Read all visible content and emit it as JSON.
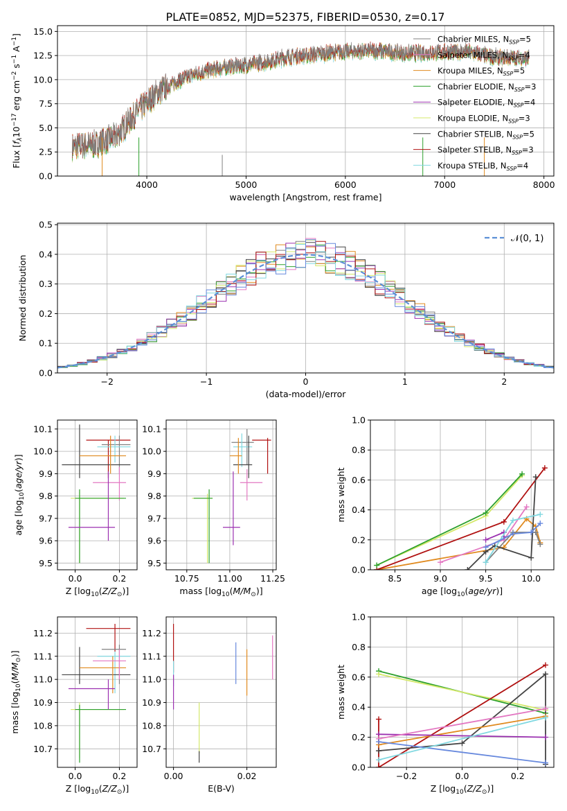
{
  "title": "PLATE=0852, MJD=52375, FIBERID=0530, z=0.17",
  "colors": [
    "#808080",
    "#e377c2",
    "#ff7f0e",
    "#2ca02c",
    "#9467bd",
    "#dbdb8d",
    "#555555",
    "#b22222",
    "#7fd6e0"
  ],
  "models": [
    {
      "label": "Chabrier MILES, N",
      "n": "5",
      "color": "#808080"
    },
    {
      "label": "Salpeter MILES, N",
      "n": "4",
      "color": "#e377c2"
    },
    {
      "label": "Kroupa MILES, N",
      "n": "5",
      "color": "#e08a1e"
    },
    {
      "label": "Chabrier ELODIE, N",
      "n": "3",
      "color": "#2ca02c"
    },
    {
      "label": "Salpeter ELODIE, N",
      "n": "4",
      "color": "#9b30b0"
    },
    {
      "label": "Kroupa ELODIE, N",
      "n": "3",
      "color": "#d4e86a"
    },
    {
      "label": "Chabrier STELIB, N",
      "n": "5",
      "color": "#444444"
    },
    {
      "label": "Salpeter STELIB, N",
      "n": "3",
      "color": "#b01010"
    },
    {
      "label": "Kroupa STELIB, N",
      "n": "4",
      "color": "#80d8e0"
    }
  ],
  "chart_data": [
    {
      "id": "spectrum",
      "type": "line",
      "xlabel": "wavelength [Angstrom, rest frame]",
      "ylabel": "Flux [f_λ10^{-17} erg cm^{-2} s^{-1} A^{-1}]",
      "xlim": [
        3100,
        8100
      ],
      "ylim": [
        0,
        15.6
      ],
      "xticks": [
        4000,
        5000,
        6000,
        7000,
        8000
      ],
      "yticks": [
        "0.0",
        "2.5",
        "5.0",
        "7.5",
        "10.0",
        "12.5",
        "15.0"
      ],
      "ytick_values": [
        0,
        2.5,
        5,
        7.5,
        10,
        12.5,
        15
      ],
      "continuum_x": [
        3250,
        3500,
        3700,
        3900,
        4100,
        4300,
        4500,
        4800,
        5100,
        5400,
        5700,
        6000,
        6300,
        6600,
        6900,
        7200,
        7500,
        7850
      ],
      "continuum_y": [
        3.0,
        3.3,
        4.2,
        6.6,
        8.6,
        9.8,
        10.6,
        11.3,
        11.6,
        12.3,
        12.6,
        12.9,
        13.0,
        12.7,
        12.8,
        12.9,
        12.3,
        12.2
      ],
      "grid": true
    },
    {
      "id": "residuals",
      "type": "step",
      "xlabel": "(data-model)/error",
      "ylabel": "Normed distribution",
      "xlim": [
        -2.5,
        2.5
      ],
      "ylim": [
        0,
        0.505
      ],
      "xticks": [
        "−2",
        "−1",
        "0",
        "1",
        "2"
      ],
      "xtick_values": [
        -2,
        -1,
        0,
        1,
        2
      ],
      "yticks": [
        "0.0",
        "0.1",
        "0.2",
        "0.3",
        "0.4",
        "0.5"
      ],
      "ytick_values": [
        0,
        0.1,
        0.2,
        0.3,
        0.4,
        0.5
      ],
      "legend": "𝒩(0, 1)",
      "legend_position": "top-right",
      "bin_width": 0.1,
      "grid": true
    },
    {
      "id": "age_vs_Z",
      "type": "errorbar",
      "xlabel": "Z [log10(Z/Z⊙)]",
      "ylabel": "age  [log10(age/yr)]",
      "xlim": [
        -0.08,
        0.28
      ],
      "ylim": [
        9.47,
        10.14
      ],
      "xticks": [
        "0.0",
        "0.2"
      ],
      "xtick_values": [
        0,
        0.2
      ],
      "yticks": [
        "9.5",
        "9.6",
        "9.7",
        "9.8",
        "9.9",
        "10.0",
        "10.1"
      ],
      "ytick_values": [
        9.5,
        9.6,
        9.7,
        9.8,
        9.9,
        10.0,
        10.1
      ],
      "points": [
        {
          "c": 7,
          "x": 0.15,
          "xe": [
            0.05,
            0.25
          ],
          "y": 10.05,
          "ye": [
            9.88,
            10.05
          ]
        },
        {
          "c": 0,
          "x": 0.2,
          "xe": [
            0.12,
            0.25
          ],
          "y": 10.03,
          "ye": [
            9.9,
            10.07
          ]
        },
        {
          "c": 8,
          "x": 0.18,
          "xe": [
            0.1,
            0.25
          ],
          "y": 10.02,
          "ye": [
            9.95,
            10.07
          ]
        },
        {
          "c": 6,
          "x": 0.02,
          "xe": [
            -0.06,
            0.25
          ],
          "y": 9.94,
          "ye": [
            9.88,
            10.12
          ]
        },
        {
          "c": 2,
          "x": 0.16,
          "xe": [
            0.02,
            0.23
          ],
          "y": 9.98,
          "ye": [
            9.9,
            10.07
          ]
        },
        {
          "c": 1,
          "x": 0.2,
          "xe": [
            0.08,
            0.23
          ],
          "y": 9.86,
          "ye": [
            9.78,
            9.93
          ]
        },
        {
          "c": 5,
          "x": 0.02,
          "xe": [
            -0.02,
            0.22
          ],
          "y": 9.79,
          "ye": [
            9.5,
            9.82
          ]
        },
        {
          "c": 3,
          "x": 0.02,
          "xe": [
            0.0,
            0.23
          ],
          "y": 9.79,
          "ye": [
            9.5,
            9.83
          ]
        },
        {
          "c": 4,
          "x": 0.15,
          "xe": [
            -0.03,
            0.18
          ],
          "y": 9.66,
          "ye": [
            9.6,
            9.91
          ]
        }
      ],
      "grid": true
    },
    {
      "id": "age_vs_mass",
      "type": "errorbar",
      "xlabel": "mass [log10(M/M⊙)]",
      "ylabel": "",
      "xlim": [
        10.63,
        11.27
      ],
      "ylim": [
        9.47,
        10.14
      ],
      "xticks": [
        "10.75",
        "11.00",
        "11.25"
      ],
      "xtick_values": [
        10.75,
        11.0,
        11.25
      ],
      "yticks": [
        "9.5",
        "9.6",
        "9.7",
        "9.8",
        "9.9",
        "10.0",
        "10.1"
      ],
      "ytick_values": [
        9.5,
        9.6,
        9.7,
        9.8,
        9.9,
        10.0,
        10.1
      ],
      "points": [
        {
          "c": 7,
          "x": 11.22,
          "xe": [
            11.13,
            11.24
          ],
          "y": 10.05,
          "ye": [
            9.9,
            10.06
          ]
        },
        {
          "c": 0,
          "x": 11.1,
          "xe": [
            11.01,
            11.14
          ],
          "y": 10.04,
          "ye": [
            9.94,
            10.1
          ]
        },
        {
          "c": 8,
          "x": 11.07,
          "xe": [
            11.02,
            11.13
          ],
          "y": 10.02,
          "ye": [
            9.93,
            10.08
          ]
        },
        {
          "c": 6,
          "x": 11.11,
          "xe": [
            11.02,
            11.13
          ],
          "y": 9.94,
          "ye": [
            9.88,
            10.07
          ]
        },
        {
          "c": 2,
          "x": 11.05,
          "xe": [
            11.0,
            11.07
          ],
          "y": 9.98,
          "ye": [
            9.9,
            10.06
          ]
        },
        {
          "c": 1,
          "x": 11.1,
          "xe": [
            11.06,
            11.19
          ],
          "y": 9.86,
          "ye": [
            9.78,
            9.92
          ]
        },
        {
          "c": 5,
          "x": 10.87,
          "xe": [
            10.78,
            10.9
          ],
          "y": 9.79,
          "ye": [
            9.5,
            9.81
          ]
        },
        {
          "c": 3,
          "x": 10.88,
          "xe": [
            10.79,
            10.9
          ],
          "y": 9.79,
          "ye": [
            9.5,
            9.83
          ]
        },
        {
          "c": 4,
          "x": 11.02,
          "xe": [
            10.96,
            11.06
          ],
          "y": 9.66,
          "ye": [
            9.58,
            9.91
          ]
        }
      ],
      "grid": true
    },
    {
      "id": "mass_weight_vs_age",
      "type": "line",
      "xlabel": "age  [log10(age/yr)]",
      "ylabel": "mass weight",
      "xlim": [
        8.23,
        10.25
      ],
      "ylim": [
        0,
        1.0
      ],
      "xticks": [
        "8.5",
        "9.0",
        "9.5",
        "10.0"
      ],
      "xtick_values": [
        8.5,
        9.0,
        9.5,
        10.0
      ],
      "yticks": [
        "0.0",
        "0.2",
        "0.4",
        "0.6",
        "0.8",
        "1.0"
      ],
      "ytick_values": [
        0,
        0.2,
        0.4,
        0.6,
        0.8,
        1.0
      ],
      "series": [
        {
          "c": 2,
          "x": [
            8.3,
            9.7,
            9.95,
            10.05,
            10.1
          ],
          "y": [
            0.0,
            0.15,
            0.34,
            0.29,
            0.18
          ]
        },
        {
          "c": 7,
          "x": [
            8.3,
            9.7,
            10.15
          ],
          "y": [
            0.0,
            0.32,
            0.68
          ]
        },
        {
          "c": 5,
          "x": [
            8.3,
            9.5,
            9.9
          ],
          "y": [
            0.03,
            0.36,
            0.63
          ]
        },
        {
          "c": 3,
          "x": [
            8.3,
            9.5,
            9.9
          ],
          "y": [
            0.03,
            0.38,
            0.64
          ]
        },
        {
          "c": 1,
          "x": [
            9.0,
            9.7,
            9.95
          ],
          "y": [
            0.05,
            0.2,
            0.42
          ]
        },
        {
          "c": 0,
          "x": [
            9.5,
            9.8,
            10.05,
            10.1
          ],
          "y": [
            0.05,
            0.25,
            0.25,
            0.17
          ]
        },
        {
          "c": 4,
          "x": [
            9.5,
            9.7,
            9.7
          ],
          "y": [
            0.2,
            0.25,
            0.22
          ]
        },
        {
          "c": 6,
          "x": [
            9.3,
            9.5,
            9.6,
            10.0,
            10.05
          ],
          "y": [
            0.0,
            0.12,
            0.16,
            0.08,
            0.62
          ]
        },
        {
          "c": 8,
          "x": [
            9.5,
            9.8,
            10.1
          ],
          "y": [
            0.05,
            0.33,
            0.37
          ]
        },
        {
          "c": 9,
          "x": [
            9.5,
            9.8,
            10.0,
            10.1
          ],
          "y": [
            0.15,
            0.24,
            0.25,
            0.31
          ]
        }
      ],
      "grid": true
    },
    {
      "id": "mass_vs_Z",
      "type": "errorbar",
      "xlabel": "Z [log10(Z/Z⊙)]",
      "ylabel": "mass [log10(M/M⊙)]",
      "xlim": [
        -0.08,
        0.28
      ],
      "ylim": [
        10.62,
        11.27
      ],
      "xticks": [
        "0.0",
        "0.2"
      ],
      "xtick_values": [
        0,
        0.2
      ],
      "yticks": [
        "10.7",
        "10.8",
        "10.9",
        "11.0",
        "11.1",
        "11.2"
      ],
      "ytick_values": [
        10.7,
        10.8,
        10.9,
        11.0,
        11.1,
        11.2
      ],
      "points": [
        {
          "c": 7,
          "x": 0.18,
          "xe": [
            0.05,
            0.25
          ],
          "y": 11.22,
          "ye": [
            11.12,
            11.24
          ]
        },
        {
          "c": 0,
          "x": 0.2,
          "xe": [
            0.12,
            0.23
          ],
          "y": 11.13,
          "ye": [
            10.98,
            11.15
          ]
        },
        {
          "c": 8,
          "x": 0.18,
          "xe": [
            0.1,
            0.25
          ],
          "y": 11.1,
          "ye": [
            10.94,
            11.12
          ]
        },
        {
          "c": 6,
          "x": 0.02,
          "xe": [
            -0.06,
            0.25
          ],
          "y": 11.02,
          "ye": [
            10.98,
            11.14
          ]
        },
        {
          "c": 2,
          "x": 0.17,
          "xe": [
            0.02,
            0.23
          ],
          "y": 11.05,
          "ye": [
            10.94,
            11.1
          ]
        },
        {
          "c": 1,
          "x": 0.2,
          "xe": [
            0.08,
            0.23
          ],
          "y": 11.08,
          "ye": [
            11.0,
            11.13
          ]
        },
        {
          "c": 5,
          "x": 0.02,
          "xe": [
            -0.02,
            0.22
          ],
          "y": 10.87,
          "ye": [
            10.66,
            10.9
          ]
        },
        {
          "c": 3,
          "x": 0.02,
          "xe": [
            0.0,
            0.23
          ],
          "y": 10.87,
          "ye": [
            10.64,
            10.89
          ]
        },
        {
          "c": 4,
          "x": 0.15,
          "xe": [
            -0.03,
            0.18
          ],
          "y": 10.96,
          "ye": [
            10.87,
            11.0
          ]
        }
      ],
      "grid": true
    },
    {
      "id": "mass_vs_EBV",
      "type": "errorbar",
      "xlabel": "E(B-V)",
      "ylabel": "",
      "xlim": [
        -0.002,
        0.028
      ],
      "ylim": [
        10.62,
        11.27
      ],
      "xticks": [
        "0.00",
        "0.02"
      ],
      "xtick_values": [
        0,
        0.02
      ],
      "yticks": [
        "10.7",
        "10.8",
        "10.9",
        "11.0",
        "11.1",
        "11.2"
      ],
      "ytick_values": [
        10.7,
        10.8,
        10.9,
        11.0,
        11.1,
        11.2
      ],
      "points": [
        {
          "c": 7,
          "x": 0.0,
          "ye": [
            11.03,
            11.24
          ]
        },
        {
          "c": 8,
          "x": 0.0,
          "ye": [
            10.97,
            11.08
          ]
        },
        {
          "c": 4,
          "x": 0.0,
          "ye": [
            10.87,
            11.02
          ]
        },
        {
          "c": 9,
          "x": 0.017,
          "ye": [
            10.98,
            11.16
          ]
        },
        {
          "c": 2,
          "x": 0.02,
          "ye": [
            10.93,
            11.13
          ]
        },
        {
          "c": 1,
          "x": 0.027,
          "ye": [
            11.0,
            11.19
          ]
        },
        {
          "c": 5,
          "x": 0.007,
          "ye": [
            10.68,
            10.9
          ]
        },
        {
          "c": 6,
          "x": 0.007,
          "ye": [
            10.64,
            10.69
          ]
        }
      ],
      "grid": true
    },
    {
      "id": "mass_weight_vs_Z",
      "type": "line",
      "xlabel": "Z [log10(Z/Z⊙)]",
      "ylabel": "mass weight",
      "xlim": [
        -0.33,
        0.33
      ],
      "ylim": [
        0,
        1.0
      ],
      "xticks": [
        "−0.2",
        "0.0",
        "0.2"
      ],
      "xtick_values": [
        -0.2,
        0,
        0.2
      ],
      "yticks": [
        "0.0",
        "0.2",
        "0.4",
        "0.6",
        "0.8",
        "1.0"
      ],
      "ytick_values": [
        0,
        0.2,
        0.4,
        0.6,
        0.8,
        1.0
      ],
      "series": [
        {
          "c": 3,
          "x": [
            -0.3,
            0.3
          ],
          "y": [
            0.64,
            0.36
          ]
        },
        {
          "c": 5,
          "x": [
            -0.3,
            0.3
          ],
          "y": [
            0.62,
            0.38
          ]
        },
        {
          "c": 7,
          "x": [
            -0.3,
            -0.3,
            0.3
          ],
          "y": [
            0.32,
            0.0,
            0.68
          ]
        },
        {
          "c": 6,
          "x": [
            -0.3,
            0.0,
            0.3,
            0.3
          ],
          "y": [
            0.11,
            0.16,
            0.62,
            0.02
          ]
        },
        {
          "c": 2,
          "x": [
            -0.3,
            0.3
          ],
          "y": [
            0.15,
            0.34
          ]
        },
        {
          "c": 4,
          "x": [
            -0.3,
            0.3
          ],
          "y": [
            0.22,
            0.2
          ]
        },
        {
          "c": 1,
          "x": [
            -0.3,
            0.3
          ],
          "y": [
            0.19,
            0.39
          ]
        },
        {
          "c": 9,
          "x": [
            -0.3,
            0.3
          ],
          "y": [
            0.17,
            0.03
          ]
        },
        {
          "c": 8,
          "x": [
            -0.3,
            0.3
          ],
          "y": [
            0.05,
            0.33
          ]
        }
      ],
      "grid": true
    }
  ]
}
